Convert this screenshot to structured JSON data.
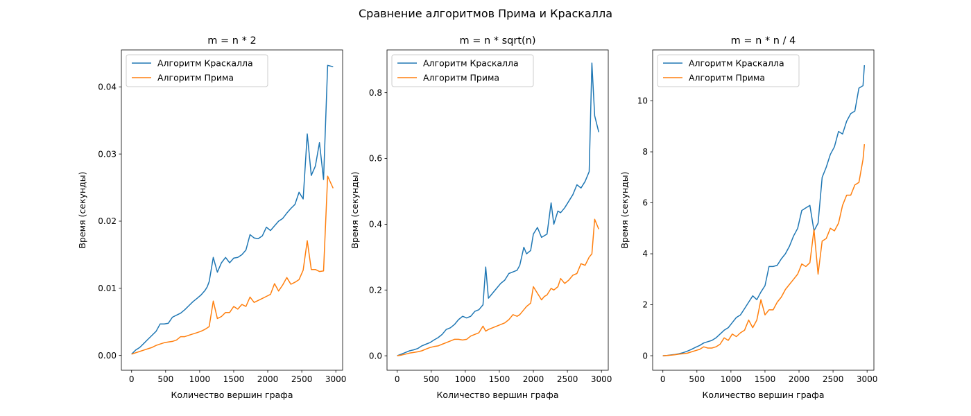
{
  "figure": {
    "suptitle": "Сравнение алгоритмов Прима и Краскалла"
  },
  "colors": {
    "kruskal": "#1f77b4",
    "prim": "#ff7f0e"
  },
  "chart_data": [
    {
      "type": "line",
      "title": "m = n * 2",
      "xlabel": "Количество вершин графа",
      "ylabel": "Время (секунды)",
      "xlim": [
        -150,
        3100
      ],
      "ylim": [
        -0.0022,
        0.0455
      ],
      "xticks": [
        0,
        500,
        1000,
        1500,
        2000,
        2500,
        3000
      ],
      "yticks": [
        0.0,
        0.01,
        0.02,
        0.03,
        0.04
      ],
      "ytick_labels": [
        "0.00",
        "0.01",
        "0.02",
        "0.03",
        "0.04"
      ],
      "legend_position": "top-left",
      "grid": false,
      "x": [
        0,
        60,
        120,
        180,
        240,
        300,
        360,
        420,
        480,
        540,
        600,
        660,
        720,
        780,
        840,
        900,
        960,
        1020,
        1080,
        1110,
        1140,
        1200,
        1260,
        1320,
        1380,
        1440,
        1500,
        1560,
        1620,
        1680,
        1740,
        1800,
        1860,
        1920,
        1980,
        2040,
        2100,
        2160,
        2220,
        2280,
        2340,
        2400,
        2460,
        2520,
        2580,
        2640,
        2700,
        2760,
        2820,
        2880,
        2960
      ],
      "series": [
        {
          "name": "Алгоритм Краскалла",
          "values": [
            0.0002,
            0.0008,
            0.0012,
            0.0018,
            0.0024,
            0.003,
            0.0036,
            0.0047,
            0.0047,
            0.0048,
            0.0057,
            0.006,
            0.0063,
            0.0068,
            0.0074,
            0.008,
            0.0085,
            0.009,
            0.0097,
            0.0102,
            0.011,
            0.0146,
            0.0124,
            0.0138,
            0.0146,
            0.0138,
            0.0145,
            0.0146,
            0.015,
            0.0157,
            0.018,
            0.0175,
            0.0174,
            0.0178,
            0.0191,
            0.0186,
            0.0193,
            0.02,
            0.0204,
            0.0212,
            0.0219,
            0.0225,
            0.0243,
            0.0233,
            0.033,
            0.0268,
            0.0282,
            0.0317,
            0.0262,
            0.0432,
            0.043
          ],
          "note": "values estimated from plot"
        },
        {
          "name": "Алгоритм Прима",
          "values": [
            0.0002,
            0.0004,
            0.0006,
            0.0008,
            0.001,
            0.0012,
            0.0015,
            0.0017,
            0.0019,
            0.002,
            0.0021,
            0.0023,
            0.0028,
            0.0028,
            0.003,
            0.0032,
            0.0034,
            0.0036,
            0.0039,
            0.0041,
            0.0043,
            0.0081,
            0.0055,
            0.0058,
            0.0064,
            0.0064,
            0.0073,
            0.0069,
            0.0076,
            0.0073,
            0.0087,
            0.0079,
            0.0082,
            0.0085,
            0.0088,
            0.0091,
            0.0107,
            0.0096,
            0.0105,
            0.0116,
            0.0106,
            0.0109,
            0.0113,
            0.0127,
            0.0171,
            0.0128,
            0.0128,
            0.0125,
            0.0126,
            0.0267,
            0.0249
          ]
        }
      ]
    },
    {
      "type": "line",
      "title": "m = n * sqrt(n)",
      "xlabel": "Количество вершин графа",
      "ylabel": "Время (секунды)",
      "xlim": [
        -150,
        3100
      ],
      "ylim": [
        -0.044,
        0.93
      ],
      "xticks": [
        0,
        500,
        1000,
        1500,
        2000,
        2500,
        3000
      ],
      "yticks": [
        0.0,
        0.2,
        0.4,
        0.6,
        0.8
      ],
      "ytick_labels": [
        "0.0",
        "0.2",
        "0.4",
        "0.6",
        "0.8"
      ],
      "legend_position": "top-left",
      "grid": false,
      "x": [
        0,
        60,
        120,
        180,
        240,
        300,
        360,
        420,
        480,
        540,
        600,
        660,
        720,
        780,
        840,
        900,
        960,
        1020,
        1080,
        1140,
        1200,
        1260,
        1300,
        1340,
        1400,
        1460,
        1520,
        1580,
        1640,
        1700,
        1760,
        1800,
        1860,
        1900,
        1960,
        2000,
        2060,
        2120,
        2160,
        2200,
        2260,
        2300,
        2360,
        2400,
        2460,
        2520,
        2580,
        2640,
        2700,
        2760,
        2820,
        2860,
        2900,
        2960
      ],
      "series": [
        {
          "name": "Алгоритм Краскалла",
          "values": [
            0.0,
            0.005,
            0.01,
            0.015,
            0.018,
            0.022,
            0.03,
            0.035,
            0.04,
            0.048,
            0.055,
            0.065,
            0.08,
            0.085,
            0.095,
            0.11,
            0.12,
            0.115,
            0.12,
            0.135,
            0.14,
            0.155,
            0.27,
            0.175,
            0.19,
            0.205,
            0.22,
            0.23,
            0.25,
            0.255,
            0.26,
            0.275,
            0.33,
            0.31,
            0.32,
            0.37,
            0.39,
            0.36,
            0.365,
            0.37,
            0.465,
            0.4,
            0.44,
            0.435,
            0.45,
            0.47,
            0.49,
            0.52,
            0.51,
            0.53,
            0.56,
            0.89,
            0.73,
            0.68
          ]
        },
        {
          "name": "Алгоритм Прима",
          "values": [
            0.0,
            0.002,
            0.005,
            0.008,
            0.01,
            0.012,
            0.015,
            0.02,
            0.025,
            0.028,
            0.03,
            0.035,
            0.04,
            0.045,
            0.05,
            0.05,
            0.048,
            0.05,
            0.06,
            0.065,
            0.07,
            0.09,
            0.075,
            0.08,
            0.085,
            0.09,
            0.095,
            0.1,
            0.11,
            0.125,
            0.12,
            0.125,
            0.14,
            0.15,
            0.16,
            0.21,
            0.19,
            0.17,
            0.18,
            0.185,
            0.205,
            0.2,
            0.21,
            0.235,
            0.22,
            0.23,
            0.245,
            0.25,
            0.28,
            0.275,
            0.3,
            0.31,
            0.415,
            0.385
          ]
        }
      ]
    },
    {
      "type": "line",
      "title": "m = n * n / 4",
      "xlabel": "Количество вершин графа",
      "ylabel": "Время (секунды)",
      "xlim": [
        -150,
        3100
      ],
      "ylim": [
        -0.57,
        12.0
      ],
      "xticks": [
        0,
        500,
        1000,
        1500,
        2000,
        2500,
        3000
      ],
      "yticks": [
        0,
        2,
        4,
        6,
        8,
        10
      ],
      "ytick_labels": [
        "0",
        "2",
        "4",
        "6",
        "8",
        "10"
      ],
      "legend_position": "top-left",
      "grid": false,
      "x": [
        0,
        60,
        120,
        180,
        240,
        300,
        360,
        420,
        480,
        540,
        600,
        660,
        720,
        780,
        840,
        900,
        960,
        1020,
        1080,
        1140,
        1200,
        1260,
        1320,
        1380,
        1440,
        1500,
        1560,
        1620,
        1680,
        1740,
        1800,
        1860,
        1920,
        1980,
        2040,
        2100,
        2160,
        2220,
        2280,
        2340,
        2400,
        2460,
        2520,
        2580,
        2640,
        2700,
        2760,
        2820,
        2880,
        2940,
        2960
      ],
      "series": [
        {
          "name": "Алгоритм Краскалла",
          "values": [
            0.0,
            0.01,
            0.03,
            0.05,
            0.08,
            0.12,
            0.18,
            0.25,
            0.33,
            0.4,
            0.5,
            0.55,
            0.6,
            0.7,
            0.85,
            1.0,
            1.1,
            1.3,
            1.5,
            1.6,
            1.85,
            2.1,
            2.35,
            2.2,
            2.5,
            2.75,
            3.5,
            3.5,
            3.55,
            3.8,
            4.0,
            4.3,
            4.7,
            5.0,
            5.7,
            5.8,
            5.9,
            4.9,
            5.2,
            7.0,
            7.4,
            7.9,
            8.2,
            8.8,
            8.7,
            9.2,
            9.5,
            9.6,
            10.5,
            10.6,
            11.4
          ]
        },
        {
          "name": "Алгоритм Прима",
          "values": [
            0.0,
            0.01,
            0.02,
            0.04,
            0.06,
            0.08,
            0.1,
            0.15,
            0.2,
            0.25,
            0.35,
            0.3,
            0.3,
            0.35,
            0.45,
            0.7,
            0.6,
            0.85,
            0.75,
            0.9,
            1.0,
            1.4,
            1.1,
            1.4,
            2.2,
            1.6,
            1.8,
            1.8,
            2.1,
            2.3,
            2.6,
            2.8,
            3.0,
            3.2,
            3.6,
            3.5,
            3.65,
            4.95,
            3.2,
            4.5,
            4.6,
            5.0,
            4.9,
            5.2,
            5.9,
            6.3,
            6.3,
            6.7,
            6.8,
            7.7,
            8.3
          ]
        }
      ]
    }
  ]
}
